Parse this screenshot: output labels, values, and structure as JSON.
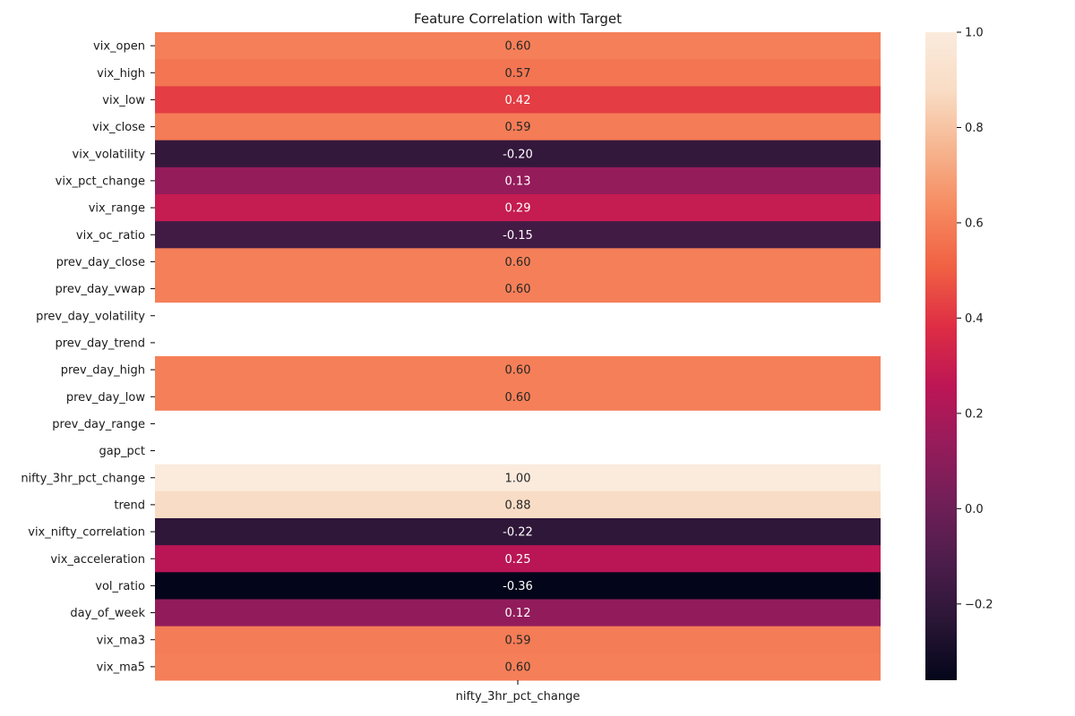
{
  "chart_data": {
    "type": "heatmap",
    "title": "Feature Correlation with Target",
    "xlabel": "",
    "ylabel": "",
    "columns": [
      "nifty_3hr_pct_change"
    ],
    "rows": [
      "vix_open",
      "vix_high",
      "vix_low",
      "vix_close",
      "vix_volatility",
      "vix_pct_change",
      "vix_range",
      "vix_oc_ratio",
      "prev_day_close",
      "prev_day_vwap",
      "prev_day_volatility",
      "prev_day_trend",
      "prev_day_high",
      "prev_day_low",
      "prev_day_range",
      "gap_pct",
      "nifty_3hr_pct_change",
      "trend",
      "vix_nifty_correlation",
      "vix_acceleration",
      "vol_ratio",
      "day_of_week",
      "vix_ma3",
      "vix_ma5"
    ],
    "values": [
      0.6,
      0.57,
      0.42,
      0.59,
      -0.2,
      0.13,
      0.29,
      -0.15,
      0.6,
      0.6,
      null,
      null,
      0.6,
      0.6,
      null,
      null,
      1.0,
      0.88,
      -0.22,
      0.25,
      -0.36,
      0.12,
      0.59,
      0.6
    ],
    "annotations": [
      "0.60",
      "0.57",
      "0.42",
      "0.59",
      "-0.20",
      "0.13",
      "0.29",
      "-0.15",
      "0.60",
      "0.60",
      "",
      "",
      "0.60",
      "0.60",
      "",
      "",
      "1.00",
      "0.88",
      "-0.22",
      "0.25",
      "-0.36",
      "0.12",
      "0.59",
      "0.60"
    ],
    "colorbar": {
      "min": -0.36,
      "max": 1.0,
      "ticks": [
        1.0,
        0.8,
        0.6,
        0.4,
        0.2,
        0.0,
        -0.2
      ],
      "tick_labels": [
        "1.0",
        "0.8",
        "0.6",
        "0.4",
        "0.2",
        "0.0",
        "−0.2"
      ],
      "colormap": "rocket",
      "colormap_stops": [
        "#03051a",
        "#2a1636",
        "#4c1d4b",
        "#701f57",
        "#961c5b",
        "#bd1655",
        "#de2d44",
        "#f06043",
        "#f6895f",
        "#f6b48e",
        "#f9dcc4",
        "#faebdd"
      ]
    },
    "grid": false
  }
}
